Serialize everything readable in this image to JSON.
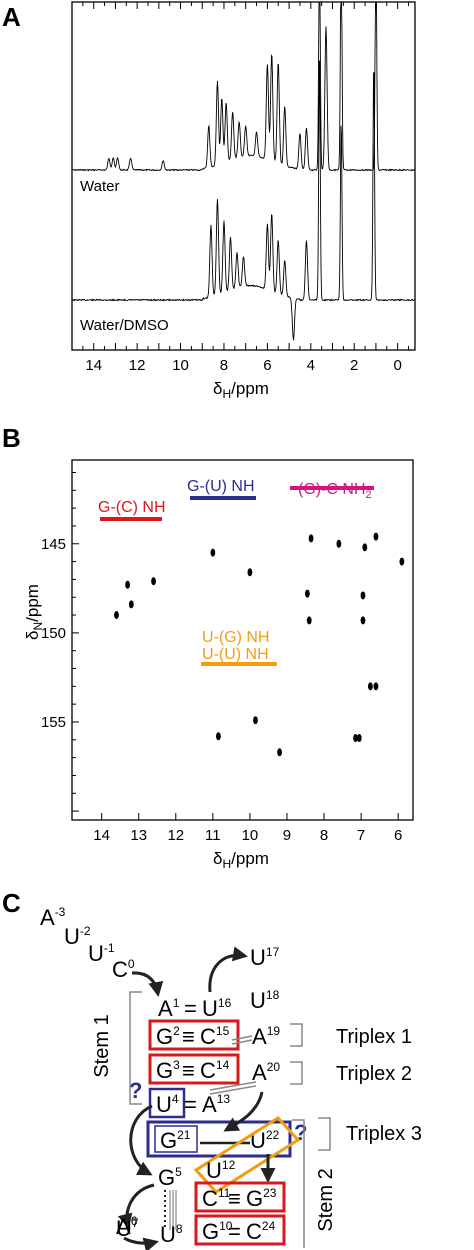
{
  "panels": {
    "a": {
      "letter": "A",
      "trace_top": "Water",
      "trace_bottom": "Water/DMSO"
    },
    "b": {
      "letter": "B",
      "group_gc": "G-(C) NH",
      "group_gu": "G-(U) NH",
      "group_gcnh2": "(G)-C NH",
      "group_gcnh2_sub": "2",
      "group_ug": "U-(G) NH",
      "group_uu": "U-(U) NH"
    },
    "c": {
      "letter": "C",
      "stem1": "Stem 1",
      "stem2": "Stem 2",
      "triplex1": "Triplex 1",
      "triplex2": "Triplex 2",
      "triplex3": "Triplex 3",
      "question": "?"
    }
  },
  "colors": {
    "red": "#d7191f",
    "navy": "#2b2d8f",
    "magenta": "#d4147d",
    "orange": "#f39c12",
    "gray": "#7a7a7a"
  },
  "chart_data": [
    {
      "type": "line",
      "title": "",
      "xlabel": "δH/ppm",
      "ylabel": "",
      "xlim": [
        15,
        -0.8
      ],
      "x_reversed": true,
      "x_ticks": [
        14,
        12,
        10,
        8,
        6,
        4,
        2,
        0
      ],
      "series": [
        {
          "name": "Water"
        },
        {
          "name": "Water/DMSO"
        }
      ],
      "peaks": {
        "Water": [
          {
            "x": 13.3,
            "h": 0.1
          },
          {
            "x": 13.1,
            "h": 0.1
          },
          {
            "x": 12.9,
            "h": 0.1
          },
          {
            "x": 12.3,
            "h": 0.1
          },
          {
            "x": 10.8,
            "h": 0.08
          },
          {
            "x": 8.7,
            "h": 0.35
          },
          {
            "x": 8.3,
            "h": 0.7
          },
          {
            "x": 8.1,
            "h": 0.55
          },
          {
            "x": 7.9,
            "h": 0.5
          },
          {
            "x": 7.6,
            "h": 0.4
          },
          {
            "x": 7.3,
            "h": 0.3
          },
          {
            "x": 7.0,
            "h": 0.25
          },
          {
            "x": 6.5,
            "h": 0.2
          },
          {
            "x": 6.0,
            "h": 0.8
          },
          {
            "x": 5.8,
            "h": 0.9
          },
          {
            "x": 5.5,
            "h": 0.85
          },
          {
            "x": 5.2,
            "h": 0.5
          },
          {
            "x": 4.5,
            "h": 0.3
          },
          {
            "x": 4.2,
            "h": 0.35
          },
          {
            "x": 3.6,
            "h": 2.0
          },
          {
            "x": 3.3,
            "h": 1.2
          },
          {
            "x": 2.6,
            "h": 2.0
          },
          {
            "x": 1.0,
            "h": 2.0
          }
        ],
        "Water/DMSO": [
          {
            "x": 8.6,
            "h": 0.6
          },
          {
            "x": 8.3,
            "h": 0.8
          },
          {
            "x": 8.0,
            "h": 0.6
          },
          {
            "x": 7.7,
            "h": 0.45
          },
          {
            "x": 7.4,
            "h": 0.3
          },
          {
            "x": 7.1,
            "h": 0.25
          },
          {
            "x": 6.0,
            "h": 0.55
          },
          {
            "x": 5.8,
            "h": 0.65
          },
          {
            "x": 5.5,
            "h": 0.45
          },
          {
            "x": 5.2,
            "h": 0.3
          },
          {
            "x": 4.8,
            "h": -0.35
          },
          {
            "x": 4.2,
            "h": 0.5
          },
          {
            "x": 3.6,
            "h": 2.0
          },
          {
            "x": 2.6,
            "h": 1.5
          },
          {
            "x": 1.1,
            "h": 2.0
          }
        ]
      }
    },
    {
      "type": "scatter",
      "title": "",
      "xlabel": "δH/ppm",
      "ylabel": "δN/ppm",
      "xlim": [
        14.8,
        5.6
      ],
      "ylim": [
        140.3,
        160.5
      ],
      "x_reversed": true,
      "y_reversed": true,
      "x_ticks": [
        14,
        13,
        12,
        11,
        10,
        9,
        8,
        7,
        6
      ],
      "y_ticks": [
        145,
        150,
        155
      ],
      "points": [
        {
          "x": 13.6,
          "y": 149.0
        },
        {
          "x": 13.3,
          "y": 147.3
        },
        {
          "x": 13.2,
          "y": 148.4
        },
        {
          "x": 12.6,
          "y": 147.1
        },
        {
          "x": 11.0,
          "y": 145.5
        },
        {
          "x": 10.0,
          "y": 146.6
        },
        {
          "x": 8.35,
          "y": 144.7
        },
        {
          "x": 7.6,
          "y": 145.0
        },
        {
          "x": 6.9,
          "y": 145.2
        },
        {
          "x": 6.6,
          "y": 144.6
        },
        {
          "x": 8.45,
          "y": 147.8
        },
        {
          "x": 6.95,
          "y": 147.9
        },
        {
          "x": 8.4,
          "y": 149.3
        },
        {
          "x": 6.95,
          "y": 149.3
        },
        {
          "x": 6.75,
          "y": 153.0
        },
        {
          "x": 6.6,
          "y": 153.0
        },
        {
          "x": 10.85,
          "y": 155.8
        },
        {
          "x": 9.85,
          "y": 154.9
        },
        {
          "x": 9.2,
          "y": 156.7
        },
        {
          "x": 7.15,
          "y": 155.9
        },
        {
          "x": 7.05,
          "y": 155.9
        },
        {
          "x": 5.9,
          "y": 146.0
        }
      ]
    }
  ]
}
